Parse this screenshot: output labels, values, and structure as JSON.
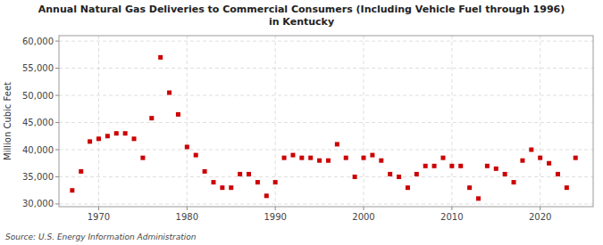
{
  "chart_data": {
    "type": "scatter",
    "title": "Annual Natural Gas Deliveries to Commercial Consumers (Including Vehicle Fuel through 1996)",
    "subtitle": "in Kentucky",
    "ylabel": "Million Cubic Feet",
    "annotations": [
      "Source: U.S. Energy Information Administration"
    ],
    "color": "#cc0000",
    "marker": "square",
    "grid": true,
    "xlim": [
      1965.5,
      2026
    ],
    "xticks": [
      1970,
      1980,
      1990,
      2000,
      2010,
      2020
    ],
    "ylim": [
      29500,
      61000
    ],
    "yticks": [
      {
        "value": 30000,
        "label": "30,000"
      },
      {
        "value": 35000,
        "label": "35,000"
      },
      {
        "value": 40000,
        "label": "40,000"
      },
      {
        "value": 45000,
        "label": "45,000"
      },
      {
        "value": 50000,
        "label": "50,000"
      },
      {
        "value": 55000,
        "label": "55,000"
      },
      {
        "value": 60000,
        "label": "60,000"
      }
    ],
    "x": [
      1967,
      1968,
      1969,
      1970,
      1971,
      1972,
      1973,
      1974,
      1975,
      1976,
      1977,
      1978,
      1979,
      1980,
      1981,
      1982,
      1983,
      1984,
      1985,
      1986,
      1987,
      1988,
      1989,
      1990,
      1991,
      1992,
      1993,
      1994,
      1995,
      1996,
      1997,
      1998,
      1999,
      2000,
      2001,
      2002,
      2003,
      2004,
      2005,
      2006,
      2007,
      2008,
      2009,
      2010,
      2011,
      2012,
      2013,
      2014,
      2015,
      2016,
      2017,
      2018,
      2019,
      2020,
      2021,
      2022,
      2023,
      2024
    ],
    "values": [
      32500,
      36000,
      41500,
      42000,
      42500,
      43000,
      43000,
      42000,
      38500,
      45800,
      57000,
      50500,
      46500,
      40500,
      39000,
      36000,
      34000,
      33000,
      33000,
      35500,
      35500,
      34000,
      31500,
      34000,
      38500,
      39000,
      38500,
      38500,
      38000,
      38000,
      41000,
      38500,
      35000,
      38500,
      39000,
      38000,
      35500,
      35000,
      33000,
      35500,
      37000,
      37000,
      38500,
      37000,
      37000,
      33000,
      31000,
      37000,
      36500,
      35500,
      34000,
      38000,
      40000,
      38500,
      37500,
      35500,
      33000,
      38500
    ]
  }
}
